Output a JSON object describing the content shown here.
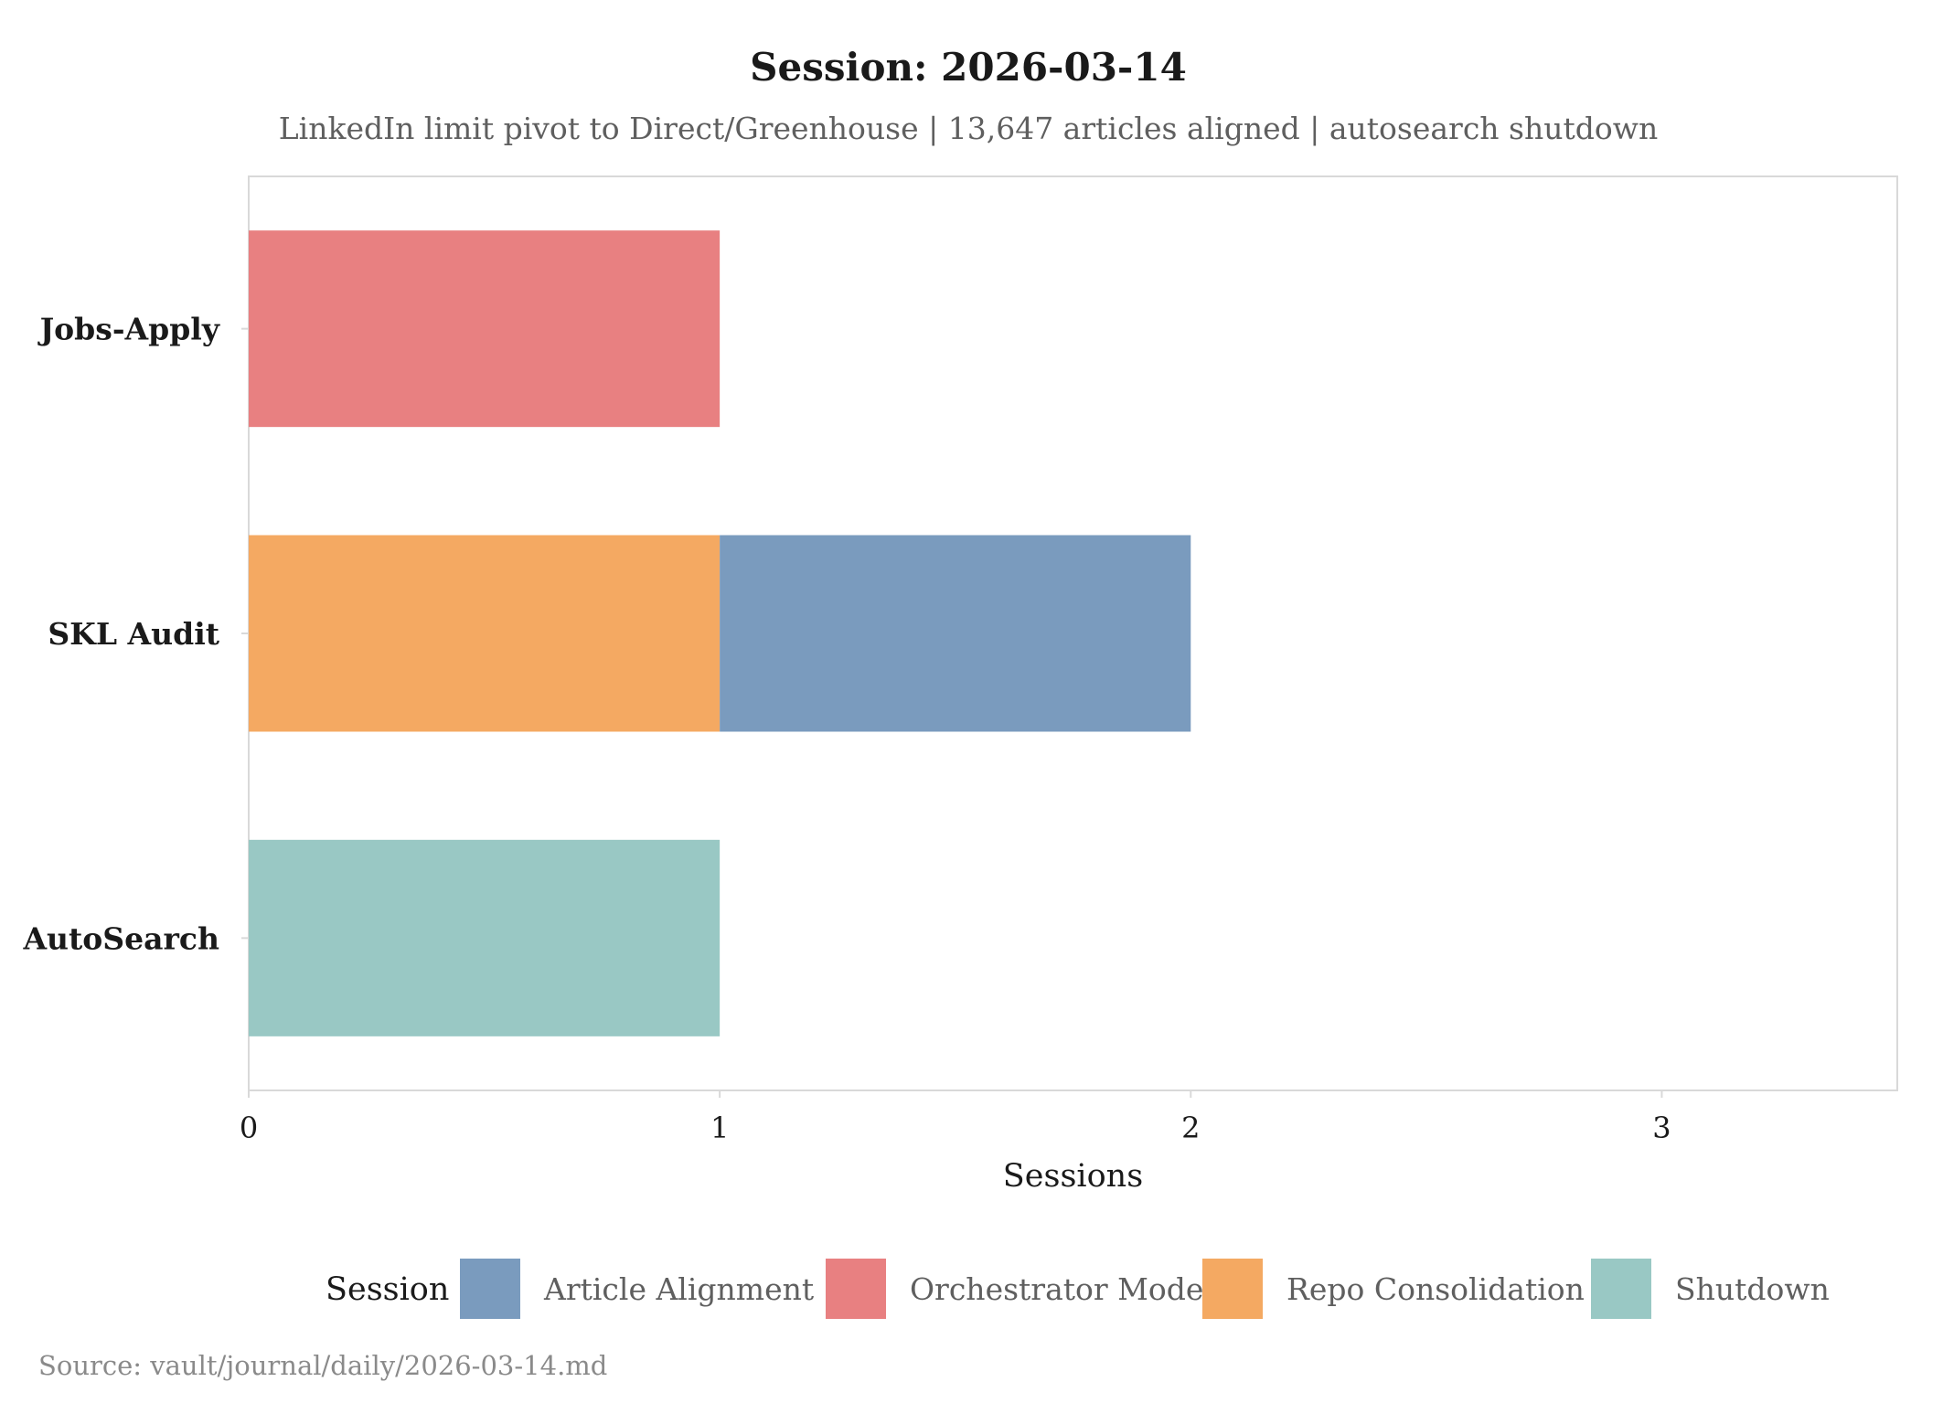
{
  "chart_data": {
    "type": "bar",
    "orientation": "horizontal",
    "stacked": true,
    "title": "Session: 2026-03-14",
    "subtitle": "LinkedIn limit pivot to Direct/Greenhouse | 13,647 articles aligned | autosearch shutdown",
    "xlabel": "Sessions",
    "ylabel": "",
    "xlim": [
      0,
      3.5
    ],
    "xticks": [
      0,
      1,
      2,
      3
    ],
    "categories": [
      "Jobs-Apply",
      "SKL Audit",
      "AutoSearch"
    ],
    "series": [
      {
        "name": "Repo Consolidation",
        "color": "#F4A962",
        "values": [
          0,
          1,
          0
        ]
      },
      {
        "name": "Orchestrator Mode",
        "color": "#E88081",
        "values": [
          1,
          0,
          0
        ]
      },
      {
        "name": "Article Alignment",
        "color": "#7A9BBE",
        "values": [
          0,
          1,
          0
        ]
      },
      {
        "name": "Shutdown",
        "color": "#99C8C4",
        "values": [
          0,
          0,
          1
        ]
      }
    ],
    "legend": {
      "title": "Session",
      "position": "bottom",
      "order": [
        "Article Alignment",
        "Orchestrator Mode",
        "Repo Consolidation",
        "Shutdown"
      ]
    },
    "grid": false,
    "caption": "Source: vault/journal/daily/2026-03-14.md"
  }
}
